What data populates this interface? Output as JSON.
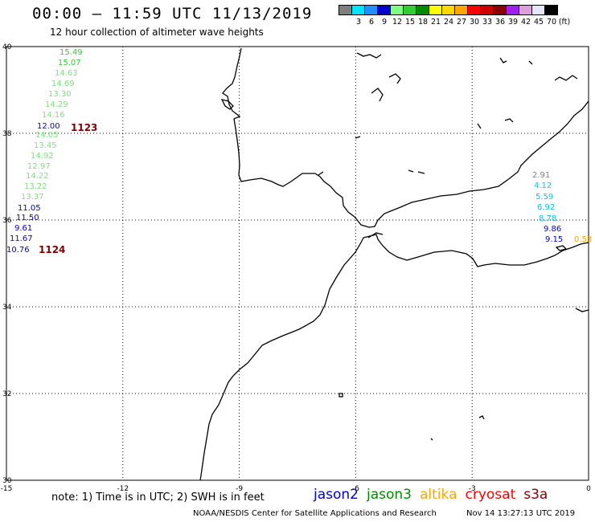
{
  "header": {
    "title": "00:00 — 11:59 UTC 11/13/2019",
    "subtitle": "12 hour collection of altimeter wave heights"
  },
  "colorbar": {
    "colors": [
      "#7f7f7f",
      "#00e5ff",
      "#1e90ff",
      "#0000cd",
      "#7fff7f",
      "#32cd32",
      "#008b00",
      "#ffff00",
      "#ffd700",
      "#ffa500",
      "#ff0000",
      "#cd0000",
      "#8b0000",
      "#a020f0",
      "#dda0dd",
      "#e6e6fa",
      "#000000"
    ],
    "labels": [
      "3",
      "6",
      "9",
      "12",
      "15",
      "18",
      "21",
      "24",
      "27",
      "30",
      "33",
      "36",
      "39",
      "42",
      "45",
      "70",
      "(ft)"
    ]
  },
  "axes": {
    "lon_ticks": [
      "-15",
      "-12",
      "-9",
      "-6",
      "-3",
      "0"
    ],
    "lat_ticks": [
      "40",
      "38",
      "36",
      "34",
      "32",
      "30"
    ],
    "lon_range": [
      -15,
      0
    ],
    "lat_range": [
      30,
      40
    ]
  },
  "passes": [
    {
      "id": "1123",
      "color": "#800000"
    },
    {
      "id": "1124",
      "color": "#800000"
    }
  ],
  "wave_heights": [
    {
      "v": "15.49",
      "c": "#32cd32"
    },
    {
      "v": "15.07",
      "c": "#32cd32"
    },
    {
      "v": "14.63",
      "c": "#7fdf7f"
    },
    {
      "v": "14.69",
      "c": "#7fdf7f"
    },
    {
      "v": "13.30",
      "c": "#7fdf7f"
    },
    {
      "v": "14.29",
      "c": "#7fdf7f"
    },
    {
      "v": "14.16",
      "c": "#7fdf7f"
    },
    {
      "v": "12.00",
      "c": "#0000cd"
    },
    {
      "v": "14.05",
      "c": "#7fdf7f"
    },
    {
      "v": "13.45",
      "c": "#7fdf7f"
    },
    {
      "v": "14.92",
      "c": "#7fdf7f"
    },
    {
      "v": "12.97",
      "c": "#7fdf7f"
    },
    {
      "v": "14.22",
      "c": "#7fdf7f"
    },
    {
      "v": "13.22",
      "c": "#7fdf7f"
    },
    {
      "v": "13.37",
      "c": "#7fdf7f"
    },
    {
      "v": "11.05",
      "c": "#0000cd"
    },
    {
      "v": "11.50",
      "c": "#0000cd"
    },
    {
      "v": "9.61",
      "c": "#0000cd"
    },
    {
      "v": "11.67",
      "c": "#0000cd"
    },
    {
      "v": "10.76",
      "c": "#0000cd"
    },
    {
      "v": "2.91",
      "c": "#7f7f7f"
    },
    {
      "v": "4.12",
      "c": "#00c8e6"
    },
    {
      "v": "5.59",
      "c": "#00c8e6"
    },
    {
      "v": "6.92",
      "c": "#00c8e6"
    },
    {
      "v": "8.78",
      "c": "#00c8e6"
    },
    {
      "v": "9.86",
      "c": "#0000cd"
    },
    {
      "v": "9.15",
      "c": "#0000cd"
    },
    {
      "v": "0.53",
      "c": "#ffa500"
    }
  ],
  "footer": {
    "note": "note: 1) Time is in UTC; 2) SWH is in feet",
    "satellites": [
      {
        "name": "jason2",
        "color": "#0000cd"
      },
      {
        "name": "jason3",
        "color": "#008b00"
      },
      {
        "name": "altika",
        "color": "#ffa500"
      },
      {
        "name": "cryosat",
        "color": "#ff0000"
      },
      {
        "name": "s3a",
        "color": "#8b0000"
      }
    ],
    "credit": "NOAA/NESDIS Center for Satellite Applications and Research",
    "timestamp": "Nov 14 13:27:13 UTC 2019"
  }
}
